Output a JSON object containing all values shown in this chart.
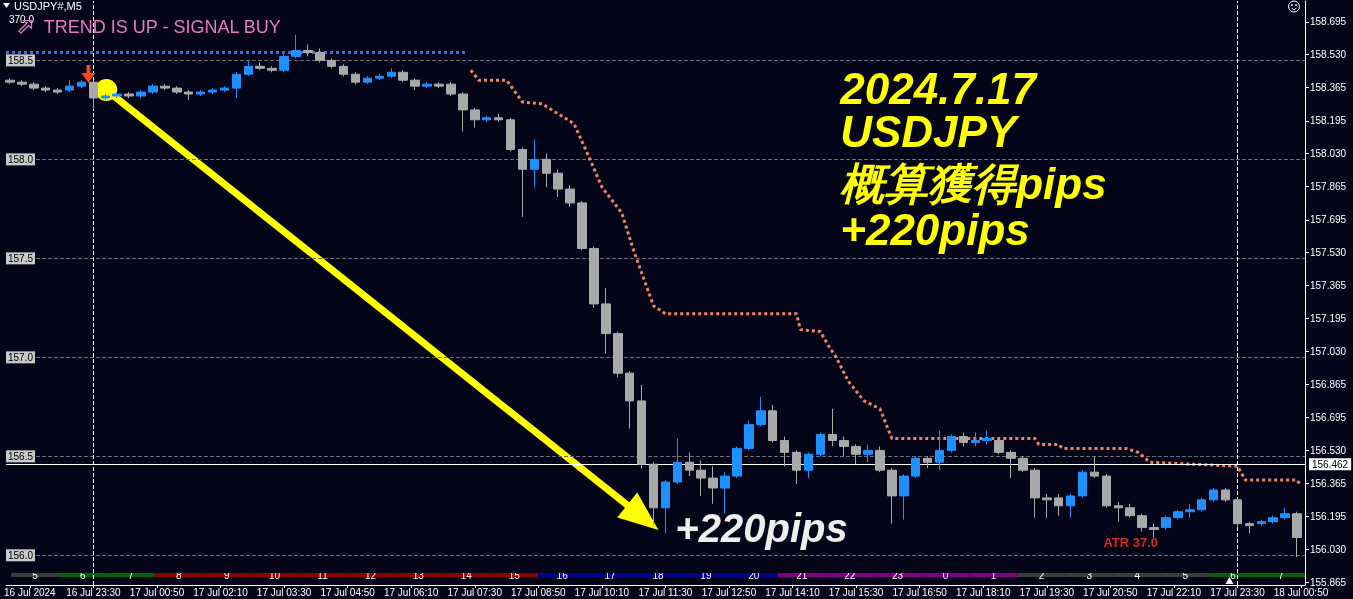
{
  "chart_data": [
    {
      "type": "candlestick",
      "title": "USDJPY#,M5",
      "annotations": [
        "370.0",
        "TREND IS UP - SIGNAL BUY",
        "2024.7.17",
        "USDJPY",
        "概算獲得pips",
        "+220pips",
        "+220pips",
        "ATR 37.0"
      ],
      "xlim": [
        "2024-07-16T21:40",
        "2024-07-18T00:55"
      ],
      "xticks": [
        {
          "value": "2024-07-16T22:10",
          "label": "16 Jul 2024"
        },
        {
          "value": "2024-07-16T23:30",
          "label": "16 Jul 23:30"
        },
        {
          "value": "2024-07-17T00:50",
          "label": "17 Jul 00:50"
        },
        {
          "value": "2024-07-17T02:10",
          "label": "17 Jul 02:10"
        },
        {
          "value": "2024-07-17T03:30",
          "label": "17 Jul 03:30"
        },
        {
          "value": "2024-07-17T04:50",
          "label": "17 Jul 04:50"
        },
        {
          "value": "2024-07-17T06:10",
          "label": "17 Jul 06:10"
        },
        {
          "value": "2024-07-17T07:30",
          "label": "17 Jul 07:30"
        },
        {
          "value": "2024-07-17T08:50",
          "label": "17 Jul 08:50"
        },
        {
          "value": "2024-07-17T10:10",
          "label": "17 Jul 10:10"
        },
        {
          "value": "2024-07-17T11:30",
          "label": "17 Jul 11:30"
        },
        {
          "value": "2024-07-17T12:50",
          "label": "17 Jul 12:50"
        },
        {
          "value": "2024-07-17T14:10",
          "label": "17 Jul 14:10"
        },
        {
          "value": "2024-07-17T15:30",
          "label": "17 Jul 15:30"
        },
        {
          "value": "2024-07-17T16:50",
          "label": "17 Jul 16:50"
        },
        {
          "value": "2024-07-17T18:10",
          "label": "17 Jul 18:10"
        },
        {
          "value": "2024-07-17T19:30",
          "label": "17 Jul 19:30"
        },
        {
          "value": "2024-07-17T20:50",
          "label": "17 Jul 20:50"
        },
        {
          "value": "2024-07-17T22:10",
          "label": "17 Jul 22:10"
        },
        {
          "value": "2024-07-17T23:30",
          "label": "17 Jul 23:30"
        },
        {
          "value": "2024-07-18T00:50",
          "label": "18 Jul 00:50"
        }
      ],
      "ylim": [
        155.85,
        158.8
      ],
      "yticks": [
        {
          "value": 156,
          "label": "156.0"
        },
        156.5,
        {
          "value": 157,
          "label": "157.0"
        },
        157.5,
        {
          "value": 158,
          "label": "158.0"
        },
        158.5
      ],
      "y2lim": [
        155.85,
        158.8
      ],
      "y2ticks": [
        155.865,
        {
          "value": 156.03,
          "label": "156.030"
        },
        156.195,
        156.365,
        {
          "value": 156.53,
          "label": "156.530"
        },
        156.695,
        156.865,
        {
          "value": 157.03,
          "label": "157.030"
        },
        157.195,
        157.365,
        {
          "value": 157.53,
          "label": "157.530"
        },
        157.695,
        157.865,
        {
          "value": 158.03,
          "label": "158.030"
        },
        158.195,
        158.365,
        {
          "value": 158.53,
          "label": "158.530"
        },
        158.695
      ],
      "grid": "y",
      "series": [
        {
          "x": [
            "2024-07-16T21:45",
            "2024-07-16T22:00",
            "2024-07-16T22:15",
            "2024-07-16T22:30",
            "2024-07-16T22:45",
            "2024-07-16T23:00",
            "2024-07-16T23:15",
            "2024-07-16T23:30",
            "2024-07-16T23:45",
            "2024-07-17T00:00",
            "2024-07-17T00:15",
            "2024-07-17T00:30",
            "2024-07-17T00:45",
            "2024-07-17T01:00",
            "2024-07-17T01:15",
            "2024-07-17T01:30",
            "2024-07-17T01:45",
            "2024-07-17T02:00",
            "2024-07-17T02:15",
            "2024-07-17T02:30",
            "2024-07-17T02:45",
            "2024-07-17T03:00",
            "2024-07-17T03:15",
            "2024-07-17T03:30",
            "2024-07-17T03:45",
            "2024-07-17T04:00",
            "2024-07-17T04:15",
            "2024-07-17T04:30",
            "2024-07-17T04:45",
            "2024-07-17T05:00",
            "2024-07-17T05:15",
            "2024-07-17T05:30",
            "2024-07-17T05:45",
            "2024-07-17T06:00",
            "2024-07-17T06:15",
            "2024-07-17T06:30",
            "2024-07-17T06:45",
            "2024-07-17T07:00",
            "2024-07-17T07:15",
            "2024-07-17T07:30",
            "2024-07-17T07:45",
            "2024-07-17T08:00",
            "2024-07-17T08:15",
            "2024-07-17T08:30",
            "2024-07-17T08:45",
            "2024-07-17T09:00",
            "2024-07-17T09:15",
            "2024-07-17T09:30",
            "2024-07-17T09:45",
            "2024-07-17T10:00",
            "2024-07-17T10:15",
            "2024-07-17T10:30",
            "2024-07-17T10:45",
            "2024-07-17T11:00",
            "2024-07-17T11:15",
            "2024-07-17T11:30",
            "2024-07-17T11:45",
            "2024-07-17T12:00",
            "2024-07-17T12:15",
            "2024-07-17T12:30",
            "2024-07-17T12:45",
            "2024-07-17T13:00",
            "2024-07-17T13:15",
            "2024-07-17T13:30",
            "2024-07-17T13:45",
            "2024-07-17T14:00",
            "2024-07-17T14:15",
            "2024-07-17T14:30",
            "2024-07-17T14:45",
            "2024-07-17T15:00",
            "2024-07-17T15:15",
            "2024-07-17T15:30",
            "2024-07-17T15:45",
            "2024-07-17T16:00",
            "2024-07-17T16:15",
            "2024-07-17T16:30",
            "2024-07-17T16:45",
            "2024-07-17T17:00",
            "2024-07-17T17:15",
            "2024-07-17T17:30",
            "2024-07-17T17:45",
            "2024-07-17T18:00",
            "2024-07-17T18:15",
            "2024-07-17T18:30",
            "2024-07-17T18:45",
            "2024-07-17T19:00",
            "2024-07-17T19:15",
            "2024-07-17T19:30",
            "2024-07-17T19:45",
            "2024-07-17T20:00",
            "2024-07-17T20:15",
            "2024-07-17T20:30",
            "2024-07-17T20:45",
            "2024-07-17T21:00",
            "2024-07-17T21:15",
            "2024-07-17T21:30",
            "2024-07-17T21:45",
            "2024-07-17T22:00",
            "2024-07-17T22:15",
            "2024-07-17T22:30",
            "2024-07-17T22:45",
            "2024-07-17T23:00",
            "2024-07-17T23:15",
            "2024-07-17T23:30",
            "2024-07-17T23:45",
            "2024-07-18T00:00",
            "2024-07-18T00:15",
            "2024-07-18T00:30",
            "2024-07-18T00:45"
          ],
          "ohlc": [
            [
              158.4,
              158.41,
              158.38,
              158.39
            ],
            [
              158.39,
              158.4,
              158.37,
              158.38
            ],
            [
              158.38,
              158.39,
              158.35,
              158.36
            ],
            [
              158.36,
              158.37,
              158.34,
              158.35
            ],
            [
              158.35,
              158.36,
              158.33,
              158.34
            ],
            [
              158.35,
              158.4,
              158.34,
              158.37
            ],
            [
              158.37,
              158.4,
              158.36,
              158.39
            ],
            [
              158.39,
              158.4,
              158.25,
              158.31
            ],
            [
              158.31,
              158.33,
              158.3,
              158.32
            ],
            [
              158.32,
              158.34,
              158.31,
              158.33
            ],
            [
              158.33,
              158.34,
              158.31,
              158.32
            ],
            [
              158.32,
              158.35,
              158.31,
              158.34
            ],
            [
              158.34,
              158.38,
              158.33,
              158.37
            ],
            [
              158.37,
              158.38,
              158.35,
              158.36
            ],
            [
              158.36,
              158.37,
              158.33,
              158.34
            ],
            [
              158.34,
              158.35,
              158.3,
              158.33
            ],
            [
              158.33,
              158.35,
              158.32,
              158.34
            ],
            [
              158.34,
              158.36,
              158.33,
              158.35
            ],
            [
              158.35,
              158.37,
              158.34,
              158.36
            ],
            [
              158.36,
              158.44,
              158.31,
              158.43
            ],
            [
              158.43,
              158.5,
              158.42,
              158.47
            ],
            [
              158.47,
              158.49,
              158.45,
              158.46
            ],
            [
              158.46,
              158.47,
              158.44,
              158.45
            ],
            [
              158.45,
              158.53,
              158.44,
              158.52
            ],
            [
              158.52,
              158.63,
              158.51,
              158.55
            ],
            [
              158.55,
              158.58,
              158.52,
              158.54
            ],
            [
              158.54,
              158.56,
              158.49,
              158.5
            ],
            [
              158.5,
              158.51,
              158.46,
              158.47
            ],
            [
              158.47,
              158.48,
              158.42,
              158.43
            ],
            [
              158.43,
              158.44,
              158.38,
              158.39
            ],
            [
              158.39,
              158.42,
              158.38,
              158.41
            ],
            [
              158.41,
              158.43,
              158.4,
              158.42
            ],
            [
              158.42,
              158.46,
              158.41,
              158.44
            ],
            [
              158.44,
              158.45,
              158.39,
              158.4
            ],
            [
              158.4,
              158.41,
              158.35,
              158.37
            ],
            [
              158.37,
              158.39,
              158.36,
              158.38
            ],
            [
              158.38,
              158.39,
              158.36,
              158.37
            ],
            [
              158.38,
              158.39,
              158.32,
              158.33
            ],
            [
              158.33,
              158.34,
              158.14,
              158.25
            ],
            [
              158.25,
              158.26,
              158.16,
              158.2
            ],
            [
              158.2,
              158.22,
              158.19,
              158.21
            ],
            [
              158.21,
              158.23,
              158.19,
              158.2
            ],
            [
              158.2,
              158.21,
              158.04,
              158.05
            ],
            [
              158.05,
              158.06,
              157.71,
              157.95
            ],
            [
              157.95,
              158.1,
              157.86,
              158.0
            ],
            [
              158.0,
              158.03,
              157.86,
              157.93
            ],
            [
              157.93,
              157.95,
              157.81,
              157.85
            ],
            [
              157.85,
              157.87,
              157.76,
              157.78
            ],
            [
              157.78,
              157.79,
              157.54,
              157.55
            ],
            [
              157.55,
              157.56,
              157.25,
              157.27
            ],
            [
              157.27,
              157.35,
              157.02,
              157.12
            ],
            [
              157.12,
              157.13,
              156.9,
              156.92
            ],
            [
              156.92,
              156.93,
              156.64,
              156.78
            ],
            [
              156.78,
              156.86,
              156.44,
              156.46
            ],
            [
              156.46,
              156.47,
              156.15,
              156.24
            ],
            [
              156.24,
              156.38,
              156.11,
              156.37
            ],
            [
              156.37,
              156.59,
              156.36,
              156.47
            ],
            [
              156.47,
              156.52,
              156.4,
              156.43
            ],
            [
              156.43,
              156.48,
              156.3,
              156.39
            ],
            [
              156.39,
              156.45,
              156.26,
              156.34
            ],
            [
              156.34,
              156.42,
              156.21,
              156.4
            ],
            [
              156.4,
              156.55,
              156.39,
              156.54
            ],
            [
              156.54,
              156.68,
              156.53,
              156.66
            ],
            [
              156.66,
              156.8,
              156.65,
              156.73
            ],
            [
              156.73,
              156.76,
              156.57,
              156.58
            ],
            [
              156.58,
              156.6,
              156.45,
              156.52
            ],
            [
              156.52,
              156.53,
              156.36,
              156.43
            ],
            [
              156.43,
              156.52,
              156.39,
              156.51
            ],
            [
              156.51,
              156.62,
              156.5,
              156.61
            ],
            [
              156.61,
              156.74,
              156.55,
              156.58
            ],
            [
              156.58,
              156.6,
              156.5,
              156.55
            ],
            [
              156.55,
              156.56,
              156.46,
              156.51
            ],
            [
              156.51,
              156.56,
              156.47,
              156.53
            ],
            [
              156.53,
              156.55,
              156.42,
              156.43
            ],
            [
              156.43,
              156.44,
              156.16,
              156.3
            ],
            [
              156.3,
              156.41,
              156.18,
              156.4
            ],
            [
              156.4,
              156.5,
              156.39,
              156.49
            ],
            [
              156.49,
              156.5,
              156.44,
              156.47
            ],
            [
              156.47,
              156.63,
              156.43,
              156.53
            ],
            [
              156.53,
              156.61,
              156.52,
              156.6
            ],
            [
              156.6,
              156.62,
              156.55,
              156.57
            ],
            [
              156.57,
              156.62,
              156.55,
              156.58
            ],
            [
              156.58,
              156.63,
              156.56,
              156.59
            ],
            [
              156.58,
              156.59,
              156.51,
              156.52
            ],
            [
              156.52,
              156.53,
              156.39,
              156.49
            ],
            [
              156.49,
              156.5,
              156.42,
              156.43
            ],
            [
              156.43,
              156.44,
              156.19,
              156.29
            ],
            [
              156.29,
              156.31,
              156.19,
              156.28
            ],
            [
              156.29,
              156.31,
              156.2,
              156.25
            ],
            [
              156.25,
              156.31,
              156.19,
              156.3
            ],
            [
              156.3,
              156.43,
              156.29,
              156.42
            ],
            [
              156.42,
              156.5,
              156.39,
              156.4
            ],
            [
              156.4,
              156.41,
              156.24,
              156.25
            ],
            [
              156.25,
              156.27,
              156.17,
              156.24
            ],
            [
              156.24,
              156.26,
              156.19,
              156.2
            ],
            [
              156.2,
              156.21,
              156.12,
              156.14
            ],
            [
              156.14,
              156.16,
              156.09,
              156.13
            ],
            [
              156.14,
              156.2,
              156.13,
              156.19
            ],
            [
              156.19,
              156.23,
              156.18,
              156.22
            ],
            [
              156.22,
              156.26,
              156.19,
              156.23
            ],
            [
              156.23,
              156.29,
              156.22,
              156.28
            ],
            [
              156.28,
              156.34,
              156.27,
              156.33
            ],
            [
              156.33,
              156.34,
              156.27,
              156.28
            ],
            [
              156.28,
              156.29,
              156.14,
              156.16
            ],
            [
              156.16,
              156.17,
              156.11,
              156.15
            ],
            [
              156.16,
              156.18,
              156.15,
              156.17
            ],
            [
              156.17,
              156.2,
              156.16,
              156.19
            ],
            [
              156.19,
              156.24,
              156.18,
              156.21
            ],
            [
              156.21,
              156.22,
              155.99,
              156.09
            ]
          ],
          "colors": [
            "#a9a9a9",
            "#a9a9a9",
            "#a9a9a9",
            "#a9a9a9",
            "#a9a9a9",
            "#1e90ff",
            "#1e90ff",
            "#a9a9a9",
            "#1e90ff",
            "#1e90ff",
            "#a9a9a9",
            "#1e90ff",
            "#1e90ff",
            "#a9a9a9",
            "#a9a9a9",
            "#a9a9a9",
            "#1e90ff",
            "#1e90ff",
            "#1e90ff",
            "#1e90ff",
            "#1e90ff",
            "#a9a9a9",
            "#a9a9a9",
            "#1e90ff",
            "#1e90ff",
            "#a9a9a9",
            "#a9a9a9",
            "#a9a9a9",
            "#a9a9a9",
            "#a9a9a9",
            "#1e90ff",
            "#1e90ff",
            "#1e90ff",
            "#a9a9a9",
            "#a9a9a9",
            "#1e90ff",
            "#a9a9a9",
            "#a9a9a9",
            "#a9a9a9",
            "#a9a9a9",
            "#1e90ff",
            "#a9a9a9",
            "#a9a9a9",
            "#a9a9a9",
            "#1e90ff",
            "#a9a9a9",
            "#a9a9a9",
            "#a9a9a9",
            "#a9a9a9",
            "#a9a9a9",
            "#a9a9a9",
            "#a9a9a9",
            "#a9a9a9",
            "#a9a9a9",
            "#a9a9a9",
            "#1e90ff",
            "#1e90ff",
            "#a9a9a9",
            "#a9a9a9",
            "#a9a9a9",
            "#1e90ff",
            "#1e90ff",
            "#1e90ff",
            "#1e90ff",
            "#a9a9a9",
            "#a9a9a9",
            "#a9a9a9",
            "#1e90ff",
            "#1e90ff",
            "#a9a9a9",
            "#a9a9a9",
            "#a9a9a9",
            "#1e90ff",
            "#a9a9a9",
            "#a9a9a9",
            "#1e90ff",
            "#1e90ff",
            "#a9a9a9",
            "#1e90ff",
            "#1e90ff",
            "#a9a9a9",
            "#1e90ff",
            "#1e90ff",
            "#a9a9a9",
            "#a9a9a9",
            "#a9a9a9",
            "#a9a9a9",
            "#a9a9a9",
            "#a9a9a9",
            "#1e90ff",
            "#1e90ff",
            "#a9a9a9",
            "#a9a9a9",
            "#a9a9a9",
            "#a9a9a9",
            "#a9a9a9",
            "#a9a9a9",
            "#1e90ff",
            "#1e90ff",
            "#1e90ff",
            "#1e90ff",
            "#1e90ff",
            "#a9a9a9",
            "#a9a9a9",
            "#a9a9a9",
            "#1e90ff",
            "#1e90ff",
            "#1e90ff",
            "#a9a9a9"
          ]
        },
        {
          "type": "line",
          "color": "#f4845f",
          "line_style": "dotted",
          "x": [
            "2024-07-17T07:25",
            "2024-07-17T07:35",
            "2024-07-17T08:10",
            "2024-07-17T08:30",
            "2024-07-17T08:55",
            "2024-07-17T09:35",
            "2024-07-17T09:55",
            "2024-07-17T10:10",
            "2024-07-17T10:35",
            "2024-07-17T10:50",
            "2024-07-17T11:15",
            "2024-07-17T11:30",
            "2024-07-17T14:15",
            "2024-07-17T14:20",
            "2024-07-17T14:45",
            "2024-07-17T14:55",
            "2024-07-17T15:05",
            "2024-07-17T15:20",
            "2024-07-17T15:40",
            "2024-07-17T16:00",
            "2024-07-17T16:15",
            "2024-07-17T19:15",
            "2024-07-17T19:20",
            "2024-07-17T19:45",
            "2024-07-17T19:50",
            "2024-07-17T21:10",
            "2024-07-17T21:25",
            "2024-07-17T21:40",
            "2024-07-17T23:30",
            "2024-07-17T23:40",
            "2024-07-18T00:45",
            "2024-07-18T00:50"
          ],
          "values": [
            158.45,
            158.4,
            158.4,
            158.29,
            158.28,
            158.18,
            158.0,
            157.86,
            157.73,
            157.54,
            157.26,
            157.22,
            157.22,
            157.14,
            157.13,
            157.06,
            157.0,
            156.88,
            156.78,
            156.74,
            156.59,
            156.59,
            156.56,
            156.56,
            156.54,
            156.54,
            156.52,
            156.47,
            156.45,
            156.38,
            156.38,
            156.35
          ]
        },
        {
          "type": "line",
          "color": "#4169e1",
          "line_style": "dotted",
          "x": [
            "2024-07-16T21:40",
            "2024-07-17T07:20"
          ],
          "values": [
            158.54,
            158.54
          ]
        }
      ],
      "ref_lines": [
        {
          "axis": "x",
          "value": "2024-07-16T23:30",
          "color": "#ffffff",
          "line_style": "dashed"
        },
        {
          "axis": "x",
          "value": "2024-07-17T23:30",
          "color": "#ffffff",
          "line_style": "dashed"
        },
        {
          "axis": "y2",
          "value": 156.462,
          "label": "156.462",
          "color": "#ffffff"
        }
      ]
    },
    {
      "type": "heatmap",
      "data_labels": true,
      "categories": [
        null,
        null,
        null,
        null,
        null,
        null,
        null,
        null,
        null,
        null,
        null,
        null,
        null,
        null,
        null,
        null,
        null,
        null,
        null,
        null,
        null,
        null,
        null,
        null,
        null,
        null,
        null
      ],
      "y_categories": [
        null
      ],
      "cells": [
        [
          5,
          6,
          7,
          8,
          9,
          10,
          11,
          12,
          13,
          14,
          15,
          16,
          17,
          18,
          19,
          20,
          21,
          22,
          23,
          0,
          1,
          2,
          3,
          4,
          5,
          6,
          7
        ]
      ],
      "colors": [
        "#3c3c3c",
        "#006400",
        "#006400",
        "#8b0000",
        "#8b0000",
        "#8b0000",
        "#8b0000",
        "#8b0000",
        "#8b0000",
        "#8b0000",
        "#8b0000",
        "#00008b",
        "#00008b",
        "#00008b",
        "#00008b",
        "#00008b",
        "#800080",
        "#800080",
        "#800080",
        "#800080",
        "#800080",
        "#3c3c3c",
        "#3c3c3c",
        "#3c3c3c",
        "#3c3c3c",
        "#006400",
        "#006400"
      ]
    }
  ]
}
